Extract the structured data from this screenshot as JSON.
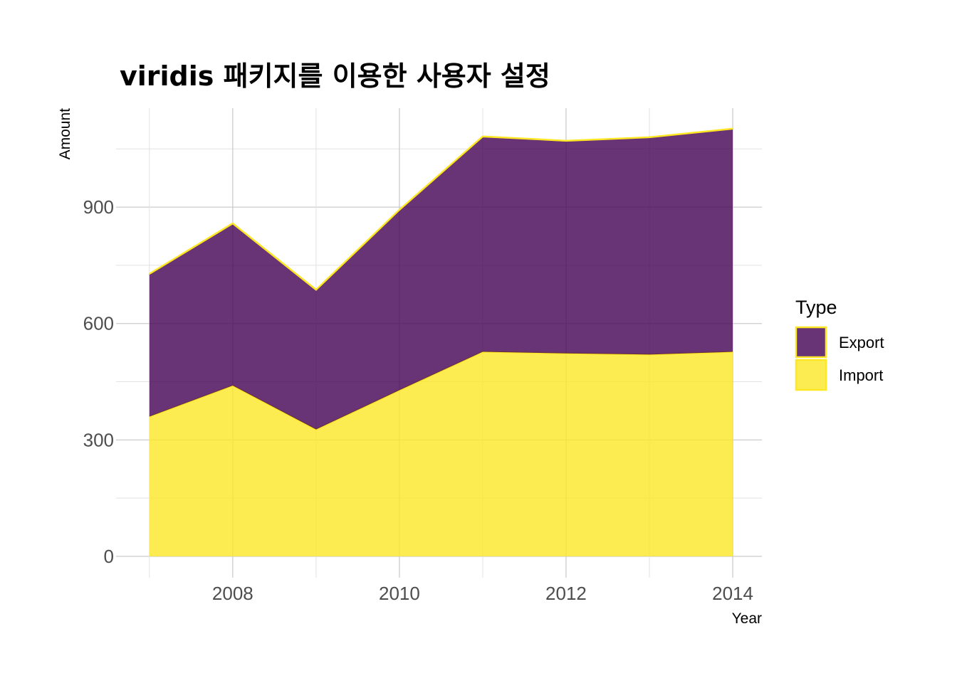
{
  "chart_data": {
    "type": "area",
    "stacked": true,
    "title": "viridis 패키지를 이용한 사용자 설정",
    "xlabel": "Year",
    "ylabel": "Amount",
    "x": [
      2007,
      2008,
      2009,
      2010,
      2011,
      2012,
      2013,
      2014
    ],
    "xticks": [
      2008,
      2010,
      2012,
      2014
    ],
    "yticks": [
      0,
      300,
      600,
      900
    ],
    "xlim": [
      2006.6,
      2014.35
    ],
    "ylim": [
      -55,
      1155
    ],
    "grid": true,
    "legend": {
      "title": "Type",
      "position": "right"
    },
    "series": [
      {
        "name": "Export",
        "color": "#440154",
        "values": [
          368,
          418,
          360,
          465,
          555,
          548,
          560,
          575
        ]
      },
      {
        "name": "Import",
        "color": "#FDE725",
        "values": [
          360,
          440,
          327,
          428,
          527,
          523,
          520,
          527
        ]
      }
    ]
  }
}
